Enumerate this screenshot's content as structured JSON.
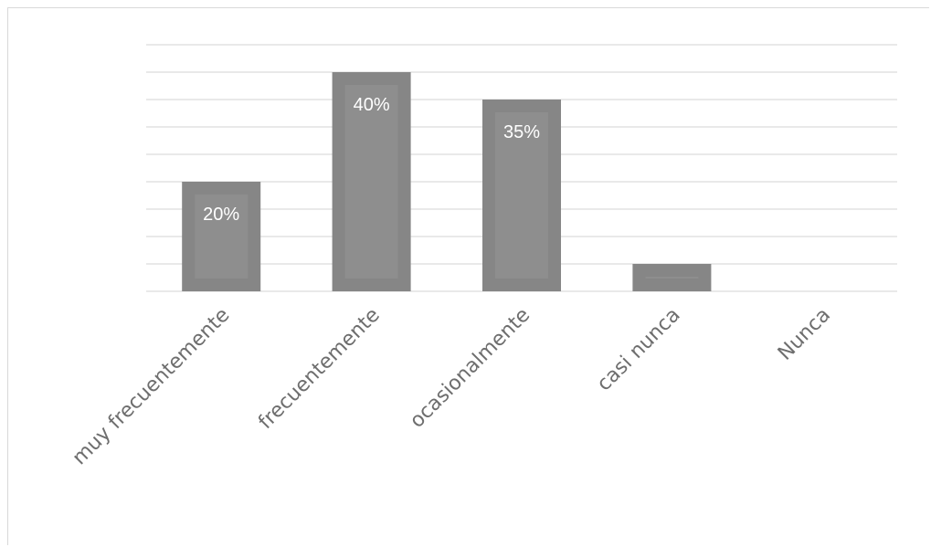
{
  "chart_data": {
    "type": "bar",
    "title": "",
    "xlabel": "",
    "ylabel": "",
    "categories": [
      "muy frecuentemente",
      "frecuentemente",
      "ocasionalmente",
      "casi nunca",
      "Nunca"
    ],
    "values": [
      20,
      40,
      35,
      5,
      0
    ],
    "data_labels": [
      "20%",
      "40%",
      "35%",
      "",
      ""
    ],
    "ylim": [
      0,
      45
    ],
    "gridline_step": 5,
    "grid": true,
    "legend": "none",
    "colors": {
      "bar": "#868686",
      "bar_inner": "#8e8e8e",
      "grid": "#dcdcdc",
      "label_text": "#ffffff",
      "axis_text": "#6e6e6e"
    }
  }
}
